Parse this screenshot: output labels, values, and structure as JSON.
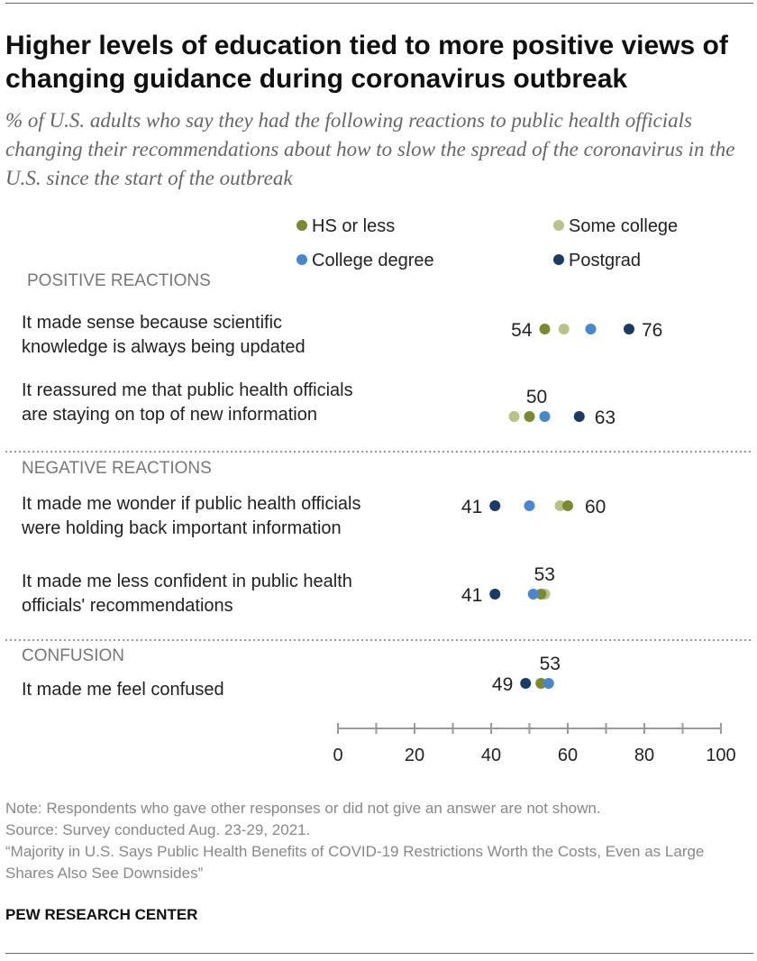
{
  "header": {
    "title": "Higher levels of education tied to more positive views of changing guidance during coronavirus outbreak",
    "subtitle": "% of U.S. adults who say they had the following reactions to public health officials changing their recommendations about how to slow the spread of the coronavirus in the U.S. since the start of the outbreak"
  },
  "footer": {
    "note": "Note: Respondents who gave other responses or did not give an answer are not shown.",
    "source": "Source: Survey conducted Aug. 23-29, 2021.",
    "report": "“Majority in U.S. Says Public Health Benefits of COVID-19 Restrictions Worth the Costs, Even as Large Shares Also See Downsides”",
    "brand": "PEW RESEARCH CENTER"
  },
  "chart_data": {
    "type": "scatter",
    "xlim": [
      0,
      100
    ],
    "xticks": [
      0,
      20,
      40,
      60,
      80,
      100
    ],
    "legend_placement": "top",
    "series": [
      {
        "name": "HS or less",
        "color": "#7a8a33"
      },
      {
        "name": "Some college",
        "color": "#bac28a"
      },
      {
        "name": "College degree",
        "color": "#4a86cc"
      },
      {
        "name": "Postgrad",
        "color": "#1c3a64"
      }
    ],
    "groups": [
      {
        "label": "POSITIVE REACTIONS",
        "items": [
          {
            "label_lines": [
              "It made sense because scientific",
              "knowledge is always being updated"
            ],
            "values": [
              54,
              59,
              66,
              76
            ],
            "labels": [
              "54",
              "",
              "",
              "76"
            ]
          },
          {
            "label_lines": [
              "It reassured me that public health officials",
              "are staying on top of new information"
            ],
            "values": [
              50,
              46,
              54,
              63
            ],
            "labels": [
              "50",
              "",
              "",
              "63"
            ]
          }
        ]
      },
      {
        "label": "NEGATIVE REACTIONS",
        "items": [
          {
            "label_lines": [
              "It made me wonder if public health officials",
              "were holding back important information"
            ],
            "values": [
              60,
              58,
              50,
              41
            ],
            "labels": [
              "60",
              "",
              "",
              "41"
            ]
          },
          {
            "label_lines": [
              "It made me less confident in public health",
              "officials' recommendations"
            ],
            "values": [
              53,
              54,
              51,
              41
            ],
            "labels": [
              "53",
              "",
              "",
              "41"
            ]
          }
        ]
      },
      {
        "label": "CONFUSION",
        "items": [
          {
            "label_lines": [
              "It made me feel confused"
            ],
            "values": [
              53,
              53,
              55,
              49
            ],
            "labels": [
              "53",
              "",
              "",
              "49"
            ]
          }
        ]
      }
    ]
  }
}
